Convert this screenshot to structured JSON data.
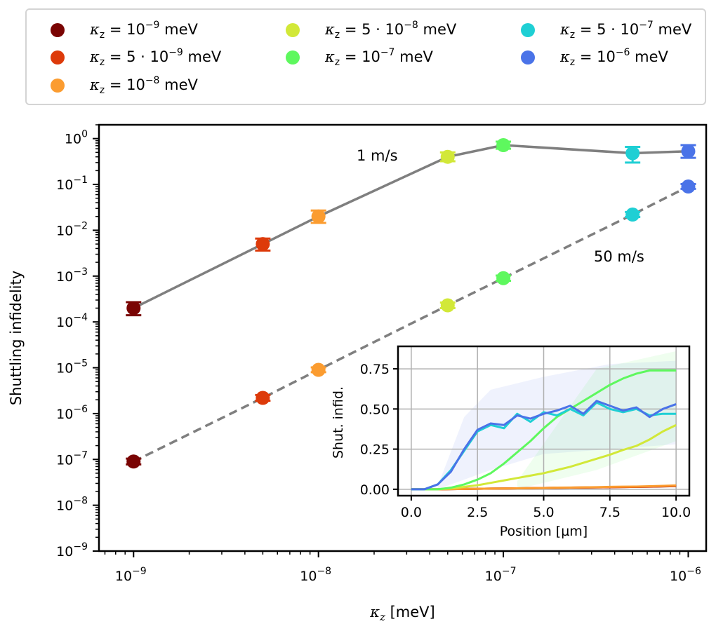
{
  "legend": [
    {
      "kappa": "10",
      "exp": "−9",
      "mult": "",
      "unit": "meV",
      "color": "#7a0403"
    },
    {
      "kappa": "10",
      "exp": "−9",
      "mult": "5 · ",
      "unit": "meV",
      "color": "#dd3a0a"
    },
    {
      "kappa": "10",
      "exp": "−8",
      "mult": "",
      "unit": "meV",
      "color": "#fb9c30"
    },
    {
      "kappa": "10",
      "exp": "−8",
      "mult": "5 · ",
      "unit": "meV",
      "color": "#d2e838"
    },
    {
      "kappa": "10",
      "exp": "−7",
      "mult": "",
      "unit": "meV",
      "color": "#5ef85e"
    },
    {
      "kappa": "10",
      "exp": "−7",
      "mult": "5 · ",
      "unit": "meV",
      "color": "#1fcfd4"
    },
    {
      "kappa": "10",
      "exp": "−6",
      "mult": "",
      "unit": "meV",
      "color": "#4a73e8"
    }
  ],
  "legend_var": "κ",
  "legend_sub": "z",
  "chart_data": [
    {
      "type": "scatter",
      "xlabel_var": "κ",
      "xlabel_sub": "z",
      "xlabel_unit": "[meV]",
      "ylabel": "Shuttling infidelity",
      "xscale": "log",
      "yscale": "log",
      "xlim": [
        6.5e-10,
        1.25e-06
      ],
      "ylim": [
        1e-09,
        2.0
      ],
      "xticks": [
        {
          "base": "10",
          "exp": "−9",
          "value": 1e-09
        },
        {
          "base": "10",
          "exp": "−8",
          "value": 1e-08
        },
        {
          "base": "10",
          "exp": "−7",
          "value": 1e-07
        },
        {
          "base": "10",
          "exp": "−6",
          "value": 1e-06
        }
      ],
      "yticks": [
        {
          "base": "10",
          "exp": "0",
          "value": 1.0
        },
        {
          "base": "10",
          "exp": "−1",
          "value": 0.1
        },
        {
          "base": "10",
          "exp": "−2",
          "value": 0.01
        },
        {
          "base": "10",
          "exp": "−3",
          "value": 0.001
        },
        {
          "base": "10",
          "exp": "−4",
          "value": 0.0001
        },
        {
          "base": "10",
          "exp": "−5",
          "value": 1e-05
        },
        {
          "base": "10",
          "exp": "−6",
          "value": 1e-06
        },
        {
          "base": "10",
          "exp": "−7",
          "value": 1e-07
        },
        {
          "base": "10",
          "exp": "−8",
          "value": 1e-08
        },
        {
          "base": "10",
          "exp": "−9",
          "value": 1e-09
        }
      ],
      "x": [
        1e-09,
        5e-09,
        1e-08,
        5e-08,
        1e-07,
        5e-07,
        1e-06
      ],
      "colors": [
        "#7a0403",
        "#dd3a0a",
        "#fb9c30",
        "#d2e838",
        "#5ef85e",
        "#1fcfd4",
        "#4a73e8"
      ],
      "series": [
        {
          "annotation": "1 m/s",
          "line_style": "solid",
          "y": [
            0.0002,
            0.005,
            0.02,
            0.4,
            0.72,
            0.48,
            0.53
          ],
          "y_low": [
            0.00014,
            0.0036,
            0.0145,
            0.32,
            0.6,
            0.3,
            0.38
          ],
          "y_high": [
            0.00027,
            0.0066,
            0.027,
            0.5,
            0.86,
            0.66,
            0.72
          ]
        },
        {
          "annotation": "50 m/s",
          "line_style": "dashed",
          "y": [
            9e-08,
            2.2e-06,
            9e-06,
            0.00023,
            0.0009,
            0.022,
            0.09
          ],
          "y_low": [
            7.8e-08,
            1.9e-06,
            8e-06,
            0.0002,
            0.00079,
            0.0195,
            0.08
          ],
          "y_high": [
            1.04e-07,
            2.55e-06,
            1.02e-05,
            0.000265,
            0.00103,
            0.025,
            0.102
          ]
        }
      ]
    },
    {
      "type": "line",
      "xlabel": "Position [µm]",
      "ylabel": "Shut. infid.",
      "xlim": [
        -0.5,
        10.5
      ],
      "ylim": [
        -0.04,
        0.89
      ],
      "xticks": [
        "0.0",
        "2.5",
        "5.0",
        "7.5",
        "10.0"
      ],
      "xtick_values": [
        0,
        2.5,
        5,
        7.5,
        10
      ],
      "yticks": [
        "0.00",
        "0.25",
        "0.50",
        "0.75"
      ],
      "ytick_values": [
        0,
        0.25,
        0.5,
        0.75
      ],
      "grid": true,
      "x": [
        0,
        0.5,
        1,
        1.5,
        2,
        2.5,
        3,
        3.5,
        4,
        4.5,
        5,
        5.5,
        6,
        6.5,
        7,
        7.5,
        8,
        8.5,
        9,
        9.5,
        10
      ],
      "series": [
        {
          "color": "#7a0403",
          "values": [
            0,
            0,
            0,
            0.001,
            0.002,
            0.003,
            0.004,
            0.005,
            0.006,
            0.007,
            0.008,
            0.009,
            0.01,
            0.011,
            0.012,
            0.013,
            0.014,
            0.015,
            0.016,
            0.018,
            0.02
          ]
        },
        {
          "color": "#dd3a0a",
          "values": [
            0,
            0,
            0,
            0.001,
            0.002,
            0.003,
            0.004,
            0.005,
            0.006,
            0.007,
            0.008,
            0.009,
            0.01,
            0.011,
            0.012,
            0.013,
            0.014,
            0.015,
            0.017,
            0.019,
            0.021
          ]
        },
        {
          "color": "#fb9c30",
          "values": [
            0,
            0,
            0,
            0.001,
            0.002,
            0.003,
            0.004,
            0.005,
            0.006,
            0.007,
            0.008,
            0.01,
            0.011,
            0.012,
            0.013,
            0.015,
            0.016,
            0.017,
            0.019,
            0.021,
            0.024
          ]
        },
        {
          "color": "#d2e838",
          "values": [
            0,
            0,
            0,
            0.005,
            0.015,
            0.025,
            0.04,
            0.055,
            0.07,
            0.085,
            0.1,
            0.12,
            0.14,
            0.165,
            0.19,
            0.215,
            0.245,
            0.27,
            0.31,
            0.36,
            0.4
          ]
        },
        {
          "color": "#5ef85e",
          "values": [
            0,
            0,
            0,
            0.01,
            0.03,
            0.06,
            0.1,
            0.16,
            0.23,
            0.3,
            0.38,
            0.45,
            0.5,
            0.55,
            0.6,
            0.65,
            0.69,
            0.72,
            0.74,
            0.74,
            0.74
          ]
        },
        {
          "color": "#1fcfd4",
          "values": [
            0,
            0,
            0.03,
            0.12,
            0.24,
            0.36,
            0.4,
            0.38,
            0.47,
            0.42,
            0.48,
            0.46,
            0.5,
            0.46,
            0.54,
            0.5,
            0.48,
            0.5,
            0.46,
            0.47,
            0.47
          ]
        },
        {
          "color": "#4a73e8",
          "values": [
            0,
            0,
            0.03,
            0.11,
            0.25,
            0.37,
            0.41,
            0.4,
            0.46,
            0.44,
            0.47,
            0.49,
            0.52,
            0.47,
            0.55,
            0.52,
            0.49,
            0.51,
            0.45,
            0.5,
            0.53
          ]
        }
      ]
    }
  ]
}
